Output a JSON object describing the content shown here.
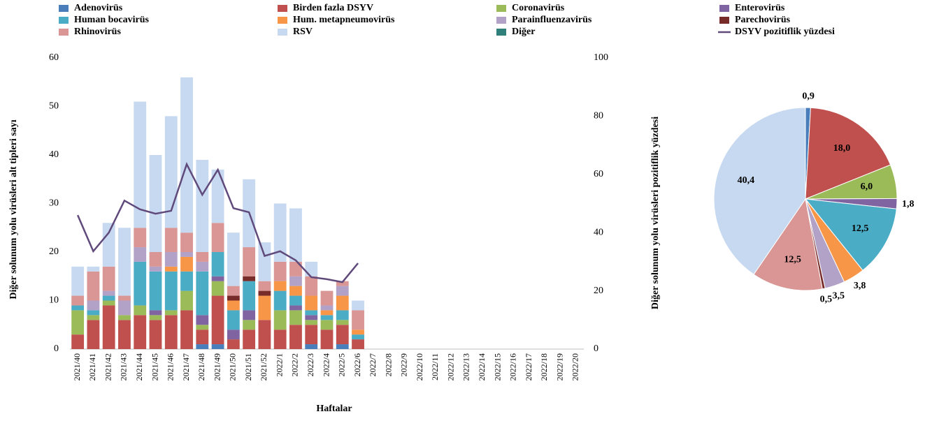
{
  "chart_data": [
    {
      "type": "bar",
      "stacked": true,
      "y_label": "Diğer solunum yolu virüsleri alt tipleri sayı",
      "x_label": "Haftalar",
      "categories": [
        "2021/40",
        "2021/41",
        "2021/42",
        "2021/43",
        "2021/44",
        "2021/45",
        "2021/46",
        "2021/47",
        "2021/48",
        "2021/49",
        "2021/50",
        "2021/51",
        "2021/52",
        "2022/1",
        "2022/2",
        "2022/3",
        "2022/4",
        "2022/5",
        "2022/6",
        "2022/7",
        "2022/8",
        "2022/9",
        "2022/10",
        "2022/11",
        "2022/12",
        "2022/13",
        "2022/14",
        "2022/15",
        "2022/16",
        "2022/17",
        "2022/18",
        "2022/19",
        "2022/20"
      ],
      "ylim": [
        0,
        60
      ],
      "yticks": [
        0,
        10,
        20,
        30,
        40,
        50,
        60
      ],
      "y2lim": [
        0,
        100
      ],
      "y2ticks": [
        0,
        20,
        40,
        60,
        80,
        100
      ],
      "series": [
        {
          "name": "Adenovirüs",
          "color": "#4a7ebb",
          "values": [
            0,
            0,
            0,
            0,
            0,
            0,
            0,
            0,
            1,
            1,
            0,
            0,
            0,
            0,
            0,
            1,
            0,
            1,
            0,
            null,
            null,
            null,
            null,
            null,
            null,
            null,
            null,
            null,
            null,
            null,
            null,
            null,
            null
          ]
        },
        {
          "name": "Birden fazla DSYV",
          "color": "#c0504d",
          "values": [
            3,
            6,
            9,
            6,
            7,
            6,
            7,
            8,
            3,
            10,
            2,
            4,
            6,
            4,
            5,
            4,
            4,
            4,
            2,
            null,
            null,
            null,
            null,
            null,
            null,
            null,
            null,
            null,
            null,
            null,
            null,
            null,
            null
          ]
        },
        {
          "name": "Coronavirüs",
          "color": "#9bbb59",
          "values": [
            5,
            1,
            1,
            1,
            2,
            1,
            1,
            4,
            1,
            3,
            0,
            2,
            0,
            4,
            3,
            1,
            2,
            1,
            0,
            null,
            null,
            null,
            null,
            null,
            null,
            null,
            null,
            null,
            null,
            null,
            null,
            null,
            null
          ]
        },
        {
          "name": "Enterovirüs",
          "color": "#8064a2",
          "values": [
            0,
            0,
            0,
            0,
            0,
            1,
            0,
            0,
            2,
            1,
            2,
            2,
            0,
            0,
            1,
            1,
            0,
            0,
            0,
            null,
            null,
            null,
            null,
            null,
            null,
            null,
            null,
            null,
            null,
            null,
            null,
            null,
            null
          ]
        },
        {
          "name": "Human bocavirüs",
          "color": "#4bacc6",
          "values": [
            1,
            1,
            1,
            0,
            9,
            8,
            8,
            4,
            9,
            5,
            4,
            6,
            0,
            4,
            2,
            1,
            1,
            2,
            1,
            null,
            null,
            null,
            null,
            null,
            null,
            null,
            null,
            null,
            null,
            null,
            null,
            null,
            null
          ]
        },
        {
          "name": "Hum. metapneumovirüs",
          "color": "#f79646",
          "values": [
            0,
            0,
            0,
            0,
            0,
            0,
            1,
            3,
            0,
            0,
            2,
            0,
            5,
            2,
            2,
            3,
            1,
            3,
            1,
            null,
            null,
            null,
            null,
            null,
            null,
            null,
            null,
            null,
            null,
            null,
            null,
            null,
            null
          ]
        },
        {
          "name": "Parainfluenzavirüs",
          "color": "#b3a2c7",
          "values": [
            0,
            2,
            1,
            3,
            3,
            1,
            3,
            1,
            2,
            0,
            0,
            0,
            0,
            0,
            2,
            0,
            1,
            2,
            0,
            null,
            null,
            null,
            null,
            null,
            null,
            null,
            null,
            null,
            null,
            null,
            null,
            null,
            null
          ]
        },
        {
          "name": "Parechovirüs",
          "color": "#772c2a",
          "values": [
            0,
            0,
            0,
            0,
            0,
            0,
            0,
            0,
            0,
            0,
            1,
            1,
            1,
            0,
            0,
            0,
            0,
            0,
            0,
            null,
            null,
            null,
            null,
            null,
            null,
            null,
            null,
            null,
            null,
            null,
            null,
            null,
            null
          ]
        },
        {
          "name": "Rhinovirüs",
          "color": "#d99694",
          "values": [
            2,
            6,
            5,
            1,
            4,
            3,
            5,
            4,
            2,
            6,
            2,
            6,
            2,
            4,
            3,
            4,
            3,
            1,
            4,
            null,
            null,
            null,
            null,
            null,
            null,
            null,
            null,
            null,
            null,
            null,
            null,
            null,
            null
          ]
        },
        {
          "name": "RSV",
          "color": "#c6d9f0",
          "values": [
            6,
            1,
            9,
            14,
            26,
            20,
            23,
            32,
            19,
            11,
            11,
            14,
            8,
            12,
            11,
            3,
            0,
            0,
            2,
            null,
            null,
            null,
            null,
            null,
            null,
            null,
            null,
            null,
            null,
            null,
            null,
            null,
            null
          ]
        },
        {
          "name": "Diğer",
          "color": "#2f7f7a",
          "values": [
            0,
            0,
            0,
            0,
            0,
            0,
            0,
            0,
            0,
            0,
            0,
            0,
            0,
            0,
            0,
            0,
            0,
            0,
            0,
            null,
            null,
            null,
            null,
            null,
            null,
            null,
            null,
            null,
            null,
            null,
            null,
            null,
            null
          ]
        },
        {
          "name": "DSYV pozitiflik yüzdesi",
          "color": "#604a7b",
          "type": "line",
          "axis": "y2",
          "values": [
            46,
            33.6,
            40,
            51,
            48,
            46.5,
            47.5,
            63.5,
            53,
            61.6,
            48.4,
            47,
            32,
            33.6,
            30.5,
            24.7,
            24,
            23,
            29.5,
            null,
            null,
            null,
            null,
            null,
            null,
            null,
            null,
            null,
            null,
            null,
            null,
            null,
            null
          ]
        }
      ]
    },
    {
      "type": "pie",
      "title": "Diğer solunum yolu virüsleri pozitiflik yüzdesi",
      "values": [
        0.9,
        18.0,
        6.0,
        1.8,
        12.5,
        3.8,
        3.5,
        0.5,
        12.5,
        40.4
      ],
      "value_labels": [
        "0,9",
        "18,0",
        "6,0",
        "1,8",
        "12,5",
        "3,8",
        "3,5",
        "0,5",
        "12,5",
        "40,4"
      ],
      "colors": [
        "#4a7ebb",
        "#c0504d",
        "#9bbb59",
        "#8064a2",
        "#4bacc6",
        "#f79646",
        "#b3a2c7",
        "#772c2a",
        "#d99694",
        "#c6d9f0"
      ]
    }
  ]
}
